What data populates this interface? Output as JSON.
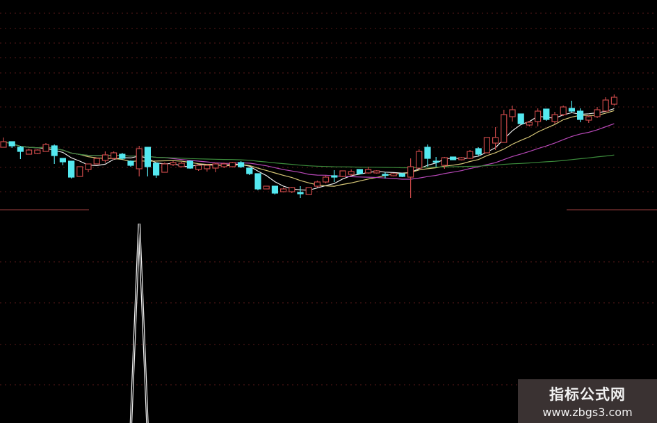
{
  "chart_data": {
    "type": "candlestick",
    "title": "",
    "xlabel": "",
    "ylabel": "",
    "grid": true,
    "colors": {
      "up": "#c84848",
      "down": "#54e8f0",
      "ma5": "#e8e8e8",
      "ma10": "#d8c878",
      "ma20": "#b848b8",
      "ma60": "#3c8c3c",
      "indicator": "#f0f0f0",
      "grid": "#5a1a1a",
      "divider": "#6a2a2a"
    },
    "moving_average_windows": [
      5,
      10,
      20,
      60
    ],
    "candles_ohlc": [
      [
        11.8,
        13.2,
        11.8,
        12.6
      ],
      [
        12.6,
        12.6,
        11.7,
        12.0
      ],
      [
        11.8,
        12.0,
        10.1,
        11.2
      ],
      [
        10.8,
        11.6,
        10.8,
        11.4
      ],
      [
        10.9,
        11.5,
        10.8,
        11.4
      ],
      [
        11.2,
        12.4,
        11.2,
        12.2
      ],
      [
        12.0,
        12.2,
        9.4,
        10.6
      ],
      [
        10.2,
        10.2,
        9.2,
        9.7
      ],
      [
        9.8,
        9.8,
        7.3,
        7.5
      ],
      [
        7.6,
        9.0,
        7.6,
        9.0
      ],
      [
        8.6,
        9.4,
        8.2,
        9.4
      ],
      [
        9.4,
        10.3,
        9.4,
        10.2
      ],
      [
        9.9,
        11.2,
        9.6,
        10.7
      ],
      [
        10.2,
        11.2,
        10.0,
        11.0
      ],
      [
        10.8,
        11.0,
        10.0,
        10.2
      ],
      [
        9.8,
        9.9,
        9.0,
        9.2
      ],
      [
        8.7,
        12.0,
        7.6,
        11.6
      ],
      [
        11.8,
        11.8,
        7.6,
        9.0
      ],
      [
        9.5,
        9.6,
        7.4,
        7.8
      ],
      [
        8.2,
        9.6,
        8.2,
        9.4
      ],
      [
        9.3,
        9.8,
        9.1,
        9.6
      ],
      [
        9.0,
        9.7,
        8.9,
        9.5
      ],
      [
        9.8,
        9.9,
        8.7,
        8.8
      ],
      [
        8.6,
        9.3,
        8.4,
        9.2
      ],
      [
        8.7,
        9.3,
        8.3,
        9.2
      ],
      [
        8.8,
        9.6,
        8.2,
        9.4
      ],
      [
        9.0,
        9.6,
        8.8,
        9.4
      ],
      [
        9.0,
        9.7,
        8.9,
        9.6
      ],
      [
        9.6,
        9.8,
        8.8,
        9.0
      ],
      [
        8.8,
        8.8,
        7.8,
        8.0
      ],
      [
        8.0,
        8.0,
        5.6,
        5.8
      ],
      [
        5.8,
        6.2,
        5.8,
        6.2
      ],
      [
        6.2,
        6.2,
        5.0,
        5.2
      ],
      [
        5.4,
        6.0,
        5.3,
        5.8
      ],
      [
        5.4,
        6.1,
        5.2,
        6.0
      ],
      [
        5.3,
        6.2,
        4.5,
        5.1
      ],
      [
        5.0,
        6.0,
        5.0,
        6.0
      ],
      [
        6.2,
        7.0,
        6.0,
        6.8
      ],
      [
        6.8,
        7.7,
        6.6,
        7.5
      ],
      [
        7.7,
        8.5,
        6.8,
        7.5
      ],
      [
        7.6,
        8.4,
        7.5,
        8.4
      ],
      [
        7.9,
        8.6,
        7.7,
        8.3
      ],
      [
        8.6,
        8.6,
        8.0,
        8.0
      ],
      [
        8.1,
        9.0,
        8.0,
        8.6
      ],
      [
        8.1,
        8.5,
        8.0,
        8.4
      ],
      [
        7.9,
        8.2,
        7.3,
        7.8
      ],
      [
        7.7,
        8.1,
        7.6,
        8.0
      ],
      [
        8.0,
        8.1,
        7.5,
        7.6
      ],
      [
        7.5,
        10.2,
        4.5,
        9.0
      ],
      [
        8.8,
        11.5,
        8.8,
        11.2
      ],
      [
        11.8,
        12.2,
        9.0,
        10.2
      ],
      [
        9.8,
        10.4,
        9.0,
        9.7
      ],
      [
        9.2,
        10.4,
        8.7,
        10.3
      ],
      [
        10.4,
        10.4,
        10.0,
        10.0
      ],
      [
        10.0,
        10.4,
        9.9,
        10.3
      ],
      [
        10.2,
        11.4,
        10.1,
        11.2
      ],
      [
        11.6,
        11.8,
        10.6,
        10.8
      ],
      [
        11.0,
        13.2,
        11.0,
        13.2
      ],
      [
        12.4,
        14.7,
        11.4,
        13.2
      ],
      [
        12.5,
        17.2,
        12.5,
        16.5
      ],
      [
        16.2,
        17.8,
        15.5,
        17.2
      ],
      [
        16.6,
        16.6,
        15.2,
        15.2
      ],
      [
        15.0,
        15.6,
        14.8,
        15.4
      ],
      [
        15.5,
        17.4,
        14.8,
        17.0
      ],
      [
        17.3,
        17.3,
        15.6,
        15.8
      ],
      [
        15.5,
        16.9,
        15.2,
        16.5
      ],
      [
        16.5,
        17.8,
        16.3,
        17.6
      ],
      [
        17.4,
        18.5,
        16.8,
        17.0
      ],
      [
        17.0,
        17.4,
        15.4,
        15.8
      ],
      [
        15.7,
        16.4,
        15.3,
        16.2
      ],
      [
        16.2,
        17.6,
        16.0,
        17.2
      ],
      [
        17.0,
        19.0,
        17.0,
        18.6
      ],
      [
        18.0,
        19.4,
        17.8,
        19.0
      ]
    ],
    "indicator_values": [
      0,
      0,
      0,
      0,
      0,
      0,
      0,
      0,
      0,
      0,
      0,
      0,
      0,
      0,
      0,
      0,
      1,
      0,
      0,
      0,
      0,
      0,
      0,
      0,
      0,
      0,
      0,
      0,
      0,
      0,
      0,
      0,
      0,
      0,
      0,
      0,
      0,
      0,
      0,
      0,
      0,
      0,
      0,
      0,
      0,
      0,
      0,
      0,
      0,
      0,
      0,
      0,
      0,
      0,
      0,
      0,
      0,
      0,
      0,
      0,
      0,
      0,
      0,
      0,
      0,
      0,
      0,
      0,
      0,
      0,
      0,
      0,
      0
    ]
  },
  "watermark": {
    "title": "指标公式网",
    "url": "www.zbgs3.com"
  }
}
